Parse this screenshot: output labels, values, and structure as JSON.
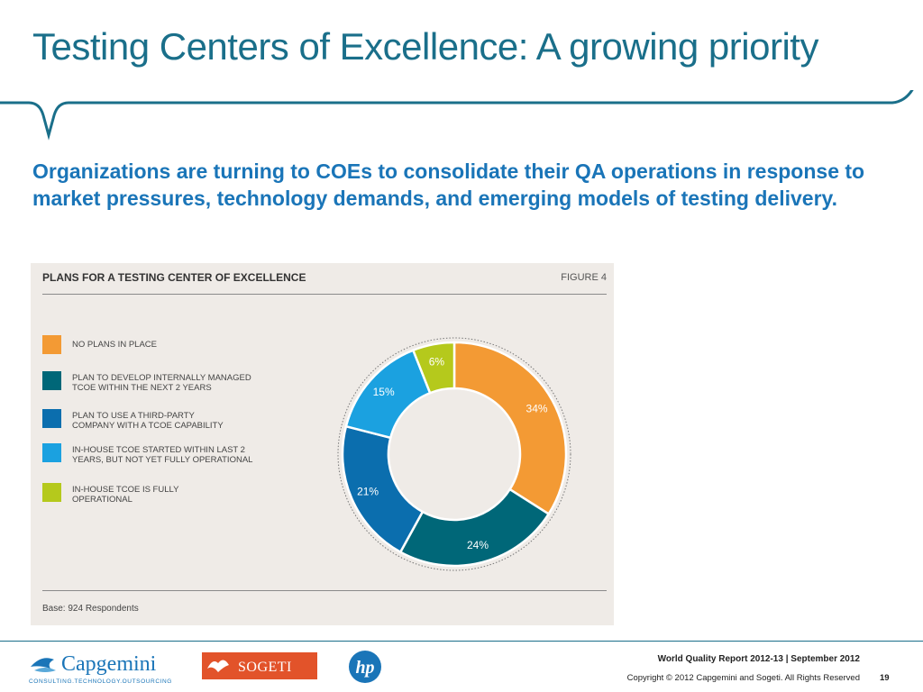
{
  "slide": {
    "title": "Testing Centers of Excellence: A growing priority",
    "subtitle": "Organizations are turning to COEs to consolidate their QA operations in response to market pressures, technology demands, and emerging models of testing delivery."
  },
  "figure": {
    "heading": "PLANS FOR A TESTING CENTER OF EXCELLENCE",
    "label": "FIGURE 4",
    "base": "Base: 924 Respondents"
  },
  "chart_data": {
    "type": "pie",
    "donut": true,
    "title": "PLANS FOR A TESTING CENTER OF EXCELLENCE",
    "categories": [
      "NO PLANS IN PLACE",
      "PLAN TO DEVELOP INTERNALLY MANAGED TCOE WITHIN THE NEXT 2 YEARS",
      "PLAN TO USE A THIRD-PARTY COMPANY WITH A TCOE CAPABILITY",
      "IN-HOUSE TCOE STARTED WITHIN LAST 2 YEARS, BUT NOT YET FULLY OPERATIONAL",
      "IN-HOUSE TCOE IS FULLY OPERATIONAL"
    ],
    "values": [
      34,
      24,
      21,
      15,
      6
    ],
    "labels": [
      "34%",
      "24%",
      "21%",
      "15%",
      "6%"
    ],
    "colors": [
      "#f39a34",
      "#006778",
      "#0b6eae",
      "#1ba1e0",
      "#b5c91c"
    ],
    "legend": "left"
  },
  "footer": {
    "report": "World Quality Report 2012-13 | September 2012",
    "copyright": "Copyright © 2012 Capgemini and Sogeti. All Rights Reserved",
    "page": "19"
  },
  "logos": {
    "capgemini": "Capgemini",
    "capgemini_tagline": "CONSULTING.TECHNOLOGY.OUTSOURCING",
    "sogeti": "SOGETI",
    "hp": "hp"
  }
}
